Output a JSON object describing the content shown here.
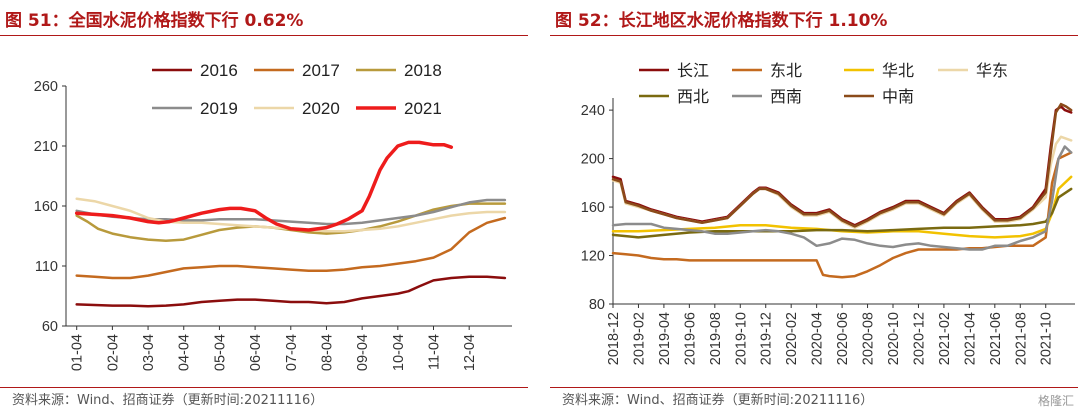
{
  "left": {
    "title": "图 51：全国水泥价格指数下行 0.62%",
    "source": "资料来源：Wind、招商证券（更新时间:20211116）"
  },
  "right": {
    "title": "图 52：长江地区水泥价格指数下行 1.10%",
    "source": "资料来源：Wind、招商证券（更新时间:20211116）",
    "watermark": "格隆汇"
  },
  "chart_data": [
    {
      "type": "line",
      "title": "图 51：全国水泥价格指数下行 0.62%",
      "xlabel": "",
      "ylabel": "",
      "ylim": [
        60,
        260
      ],
      "yticks": [
        60,
        110,
        160,
        210,
        260
      ],
      "x_ticks": [
        "01-04",
        "02-04",
        "03-04",
        "04-04",
        "05-04",
        "06-04",
        "07-04",
        "08-04",
        "09-04",
        "10-04",
        "11-04",
        "12-04"
      ],
      "grid": false,
      "legend_position": "top",
      "series": [
        {
          "name": "2016",
          "color": "#8b0d0d",
          "width": 2.5,
          "x": [
            1,
            1.5,
            2,
            2.5,
            3,
            3.5,
            4,
            4.5,
            5,
            5.5,
            6,
            6.5,
            7,
            7.5,
            8,
            8.5,
            9,
            9.5,
            10,
            10.3,
            10.6,
            11,
            11.5,
            12,
            12.5,
            13
          ],
          "y": [
            78,
            77.5,
            77,
            77,
            76.5,
            77,
            78,
            80,
            81,
            82,
            82,
            81,
            80,
            80,
            79,
            80,
            83,
            85,
            87,
            89,
            93,
            98,
            100,
            101,
            101,
            100
          ]
        },
        {
          "name": "2017",
          "color": "#c46a1f",
          "width": 2.5,
          "x": [
            1,
            1.5,
            2,
            2.5,
            3,
            3.5,
            4,
            4.5,
            5,
            5.5,
            6,
            6.5,
            7,
            7.5,
            8,
            8.5,
            9,
            9.5,
            10,
            10.5,
            11,
            11.5,
            12,
            12.5,
            13
          ],
          "y": [
            102,
            101,
            100,
            100,
            102,
            105,
            108,
            109,
            110,
            110,
            109,
            108,
            107,
            106,
            106,
            107,
            109,
            110,
            112,
            114,
            117,
            124,
            138,
            146,
            150
          ]
        },
        {
          "name": "2018",
          "color": "#b89a3c",
          "width": 2.5,
          "x": [
            1,
            1.3,
            1.6,
            2,
            2.5,
            3,
            3.5,
            4,
            4.5,
            5,
            5.5,
            6,
            6.5,
            7,
            7.5,
            8,
            8.5,
            9,
            9.5,
            10,
            10.5,
            11,
            11.5,
            12,
            12.5,
            13
          ],
          "y": [
            152,
            147,
            141,
            137,
            134,
            132,
            131,
            132,
            136,
            140,
            142,
            143,
            142,
            140,
            138,
            137,
            138,
            140,
            143,
            147,
            152,
            157,
            160,
            162,
            162,
            162
          ]
        },
        {
          "name": "2019",
          "color": "#8c8c8c",
          "width": 2.5,
          "x": [
            1,
            1.5,
            2,
            2.5,
            3,
            3.5,
            4,
            4.5,
            5,
            5.5,
            6,
            6.5,
            7,
            7.5,
            8,
            8.5,
            9,
            9.5,
            10,
            10.5,
            11,
            11.5,
            12,
            12.5,
            13
          ],
          "y": [
            156,
            153,
            151,
            150,
            149,
            149,
            148,
            148,
            149,
            149,
            149,
            148,
            147,
            146,
            145,
            145,
            146,
            148,
            150,
            152,
            155,
            159,
            163,
            165,
            165
          ]
        },
        {
          "name": "2020",
          "color": "#ecd7a8",
          "width": 2.5,
          "x": [
            1,
            1.5,
            2,
            2.5,
            3,
            3.5,
            4,
            4.5,
            5,
            5.5,
            6,
            6.5,
            7,
            7.5,
            8,
            8.5,
            9,
            9.5,
            10,
            10.5,
            11,
            11.5,
            12,
            12.5,
            13
          ],
          "y": [
            166,
            164,
            160,
            156,
            150,
            147,
            146,
            146,
            145,
            144,
            143,
            142,
            141,
            140,
            139,
            139,
            140,
            141,
            143,
            146,
            149,
            152,
            154,
            155,
            155
          ]
        },
        {
          "name": "2021",
          "color": "#ee1c1c",
          "width": 3.5,
          "x": [
            1,
            1.5,
            2,
            2.5,
            3,
            3.3,
            3.6,
            4,
            4.5,
            5,
            5.3,
            5.6,
            6,
            6.3,
            6.6,
            7,
            7.5,
            8,
            8.3,
            8.6,
            9,
            9.2,
            9.5,
            9.7,
            10,
            10.3,
            10.6,
            11,
            11.3,
            11.5
          ],
          "y": [
            154,
            153,
            152,
            150,
            147,
            146,
            147,
            150,
            154,
            157,
            158,
            158,
            156,
            150,
            145,
            141,
            140,
            142,
            145,
            149,
            156,
            168,
            190,
            200,
            210,
            213,
            213,
            211,
            211,
            209
          ]
        }
      ]
    },
    {
      "type": "line",
      "title": "图 52：长江地区水泥价格指数下行 1.10%",
      "xlabel": "",
      "ylabel": "",
      "ylim": [
        80,
        250
      ],
      "yticks": [
        80,
        120,
        160,
        200,
        240
      ],
      "x_ticks": [
        "2018-12",
        "2019-02",
        "2019-04",
        "2019-06",
        "2019-08",
        "2019-10",
        "2019-12",
        "2020-02",
        "2020-04",
        "2020-06",
        "2020-08",
        "2020-10",
        "2020-12",
        "2021-02",
        "2021-04",
        "2021-06",
        "2021-08",
        "2021-10"
      ],
      "grid": false,
      "legend_position": "top",
      "series": [
        {
          "name": "长江",
          "color": "#8b0d0d",
          "x": [
            0,
            0.6,
            1,
            2,
            3,
            4,
            5,
            6,
            7,
            8,
            9,
            10,
            11,
            11.5,
            12,
            13,
            14,
            15,
            16,
            17,
            18,
            19,
            20,
            21,
            22,
            23,
            24,
            25,
            26,
            27,
            28,
            29,
            30,
            31,
            32,
            33,
            34,
            34.4,
            34.8,
            35.2,
            35.5,
            36
          ],
          "y": [
            185,
            183,
            165,
            162,
            158,
            155,
            152,
            150,
            148,
            150,
            152,
            162,
            172,
            176,
            176,
            172,
            162,
            155,
            155,
            158,
            150,
            145,
            150,
            156,
            160,
            165,
            165,
            160,
            155,
            165,
            172,
            160,
            150,
            150,
            152,
            160,
            175,
            210,
            240,
            243,
            240,
            238
          ]
        },
        {
          "name": "东北",
          "color": "#c46a1f",
          "x": [
            0,
            1,
            2,
            3,
            4,
            5,
            6,
            7,
            8,
            9,
            10,
            11,
            12,
            13,
            14,
            15,
            16,
            16.5,
            17,
            18,
            19,
            20,
            21,
            22,
            23,
            24,
            25,
            26,
            27,
            28,
            29,
            30,
            31,
            32,
            33,
            34,
            34.5,
            35,
            36
          ],
          "y": [
            122,
            121,
            120,
            118,
            117,
            117,
            116,
            116,
            116,
            116,
            116,
            116,
            116,
            116,
            116,
            116,
            116,
            104,
            103,
            102,
            103,
            107,
            112,
            118,
            122,
            125,
            125,
            125,
            125,
            126,
            126,
            127,
            128,
            128,
            128,
            135,
            180,
            200,
            205
          ]
        },
        {
          "name": "华北",
          "color": "#f2c200",
          "x": [
            0,
            2,
            4,
            6,
            8,
            10,
            12,
            14,
            16,
            18,
            20,
            22,
            24,
            26,
            28,
            30,
            32,
            33,
            34,
            34.5,
            35,
            36
          ],
          "y": [
            140,
            140,
            141,
            142,
            143,
            145,
            145,
            143,
            142,
            140,
            139,
            140,
            140,
            138,
            136,
            135,
            136,
            138,
            142,
            155,
            175,
            185
          ]
        },
        {
          "name": "华东",
          "color": "#ecd7a8",
          "x": [
            0,
            0.6,
            1,
            2,
            3,
            4,
            5,
            6,
            7,
            8,
            9,
            10,
            11,
            11.5,
            12,
            13,
            14,
            15,
            16,
            17,
            18,
            19,
            20,
            21,
            22,
            23,
            24,
            25,
            26,
            27,
            28,
            29,
            30,
            31,
            32,
            33,
            34,
            34.4,
            34.8,
            35.2,
            36
          ],
          "y": [
            182,
            180,
            163,
            160,
            157,
            154,
            151,
            149,
            147,
            149,
            151,
            161,
            171,
            175,
            175,
            170,
            160,
            153,
            153,
            156,
            148,
            143,
            148,
            154,
            158,
            163,
            163,
            158,
            153,
            163,
            170,
            158,
            148,
            148,
            150,
            158,
            168,
            195,
            212,
            218,
            215
          ]
        },
        {
          "name": "西北",
          "color": "#7a6a10",
          "x": [
            0,
            2,
            4,
            6,
            8,
            10,
            12,
            14,
            16,
            18,
            20,
            22,
            24,
            26,
            28,
            30,
            32,
            33,
            34,
            34.5,
            35,
            36
          ],
          "y": [
            137,
            135,
            137,
            139,
            140,
            140,
            140,
            140,
            141,
            141,
            140,
            141,
            142,
            143,
            143,
            144,
            145,
            146,
            148,
            155,
            168,
            175
          ]
        },
        {
          "name": "西南",
          "color": "#8c8c8c",
          "x": [
            0,
            1,
            2,
            3,
            4,
            5,
            6,
            7,
            8,
            9,
            10,
            11,
            12,
            13,
            14,
            15,
            16,
            17,
            18,
            19,
            20,
            21,
            22,
            23,
            24,
            25,
            26,
            27,
            28,
            29,
            30,
            31,
            32,
            33,
            34,
            34.5,
            35,
            35.5,
            36
          ],
          "y": [
            145,
            146,
            146,
            146,
            143,
            142,
            141,
            140,
            138,
            138,
            139,
            140,
            141,
            140,
            138,
            135,
            128,
            130,
            134,
            133,
            130,
            128,
            127,
            129,
            130,
            128,
            127,
            126,
            125,
            125,
            128,
            128,
            132,
            135,
            140,
            165,
            200,
            210,
            205
          ]
        },
        {
          "name": "中南",
          "color": "#8b4b1a",
          "x": [
            0,
            0.6,
            1,
            2,
            3,
            4,
            5,
            6,
            7,
            8,
            9,
            10,
            11,
            11.5,
            12,
            13,
            14,
            15,
            16,
            17,
            18,
            19,
            20,
            21,
            22,
            23,
            24,
            25,
            26,
            27,
            28,
            29,
            30,
            31,
            32,
            33,
            34,
            34.4,
            34.8,
            35.2,
            35.6,
            36
          ],
          "y": [
            183,
            181,
            164,
            161,
            157,
            154,
            151,
            149,
            147,
            149,
            151,
            161,
            171,
            175,
            175,
            171,
            161,
            154,
            154,
            157,
            149,
            144,
            149,
            155,
            159,
            164,
            164,
            159,
            154,
            164,
            171,
            159,
            149,
            149,
            151,
            159,
            172,
            205,
            238,
            245,
            243,
            240
          ]
        }
      ]
    }
  ]
}
